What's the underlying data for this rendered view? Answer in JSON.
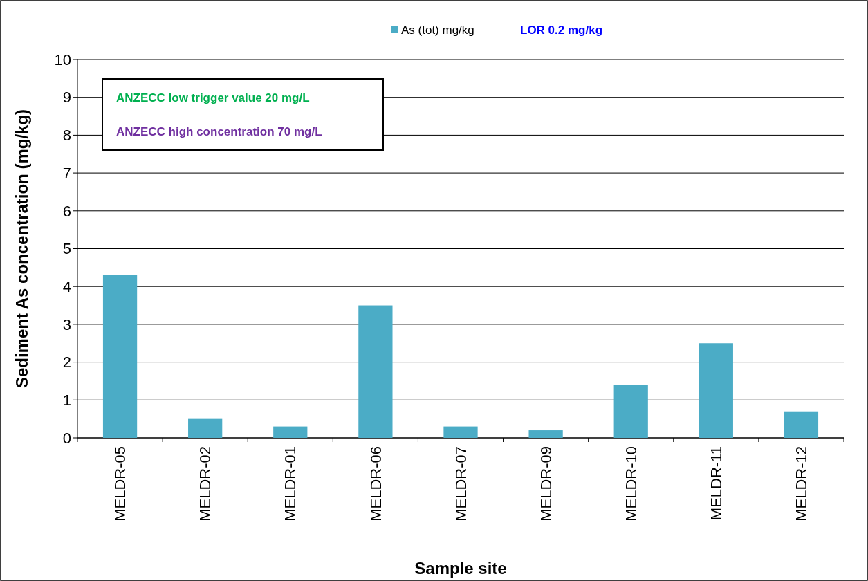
{
  "chart_data": {
    "type": "bar",
    "xlabel": "Sample site",
    "ylabel": "Sediment As concentration (mg/kg)",
    "categories": [
      "MELDR-05",
      "MELDR-02",
      "MELDR-01",
      "MELDR-06",
      "MELDR-07",
      "MELDR-09",
      "MELDR-10",
      "MELDR-11",
      "MELDR-12"
    ],
    "series": [
      {
        "name": "As (tot) mg/kg",
        "color": "#4bacc6",
        "values": [
          4.3,
          0.5,
          0.3,
          3.5,
          0.3,
          0.2,
          1.4,
          2.5,
          0.7
        ]
      }
    ],
    "ylim": [
      0,
      10
    ],
    "yticks": [
      0,
      1,
      2,
      3,
      4,
      5,
      6,
      7,
      8,
      9,
      10
    ],
    "grid": "y",
    "legend": "top",
    "annotations": [
      "LOR 0.2 mg/kg",
      "ANZECC low trigger value 20 mg/L",
      "ANZECC high concentration 70 mg/L"
    ]
  }
}
